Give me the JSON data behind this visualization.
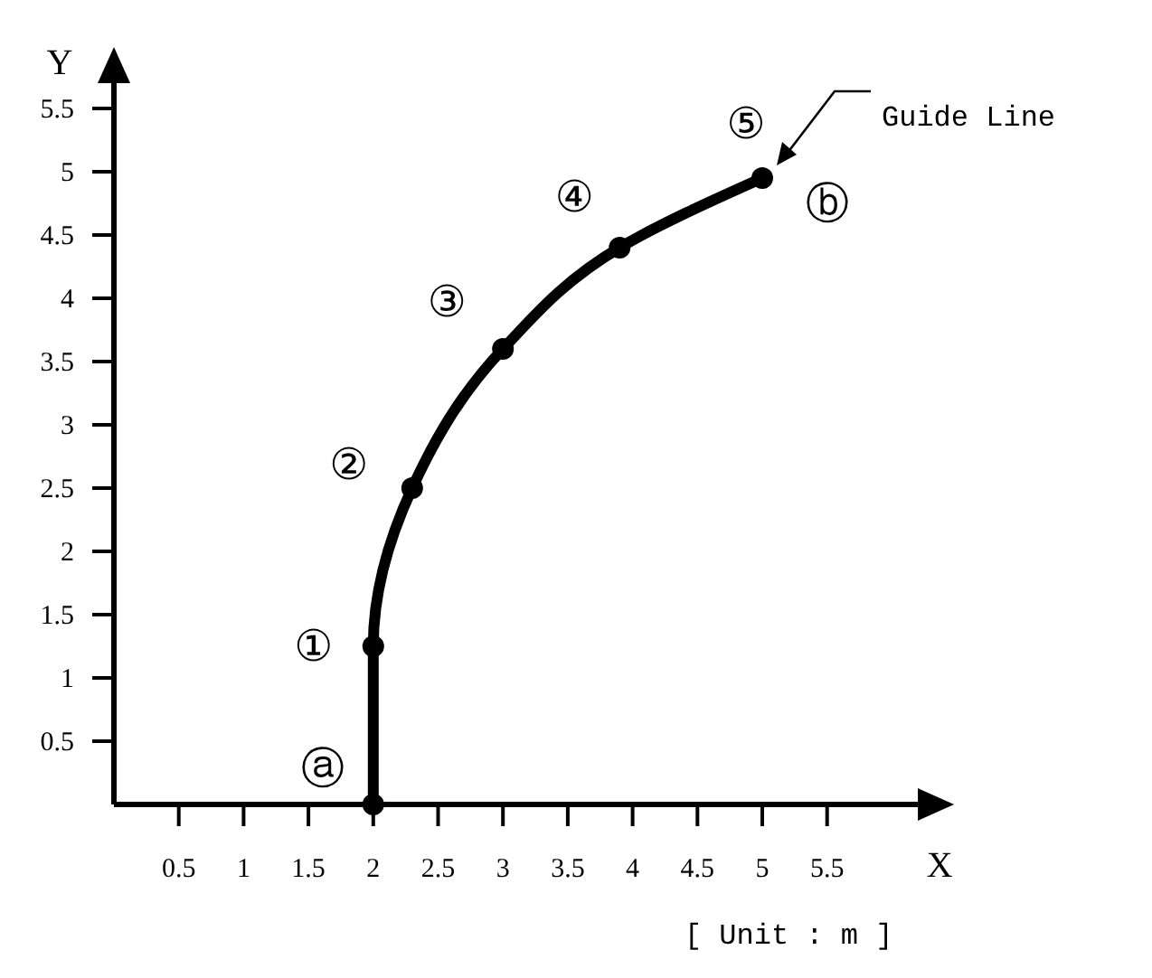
{
  "chart_data": {
    "type": "line",
    "xlabel": "X",
    "ylabel": "Y",
    "xlim": [
      0,
      6.2
    ],
    "ylim": [
      0,
      5.7
    ],
    "xticks": [
      0.5,
      1,
      1.5,
      2,
      2.5,
      3,
      3.5,
      4,
      4.5,
      5,
      5.5
    ],
    "yticks": [
      0.5,
      1,
      1.5,
      2,
      2.5,
      3,
      3.5,
      4,
      4.5,
      5,
      5.5
    ],
    "x": [
      2,
      2,
      2.3,
      3,
      3.9,
      5
    ],
    "series": [
      {
        "color": "#000000",
        "values": [
          0,
          1.25,
          2.5,
          3.6,
          4.4,
          4.95
        ]
      }
    ],
    "marker": "circle",
    "line_style": "solid",
    "grid": false,
    "annotations": [
      {
        "text": "ⓐ",
        "x": 2,
        "y": 0
      },
      {
        "text": "①",
        "x": 2,
        "y": 1.25
      },
      {
        "text": "②",
        "x": 2.3,
        "y": 2.5
      },
      {
        "text": "③",
        "x": 3,
        "y": 3.6
      },
      {
        "text": "④",
        "x": 3.9,
        "y": 4.4
      },
      {
        "text": "⑤",
        "x": 5,
        "y": 4.95
      },
      {
        "text": "ⓑ",
        "x": 5,
        "y": 4.95
      },
      "Guide Line",
      "[ Unit : m ]"
    ]
  }
}
